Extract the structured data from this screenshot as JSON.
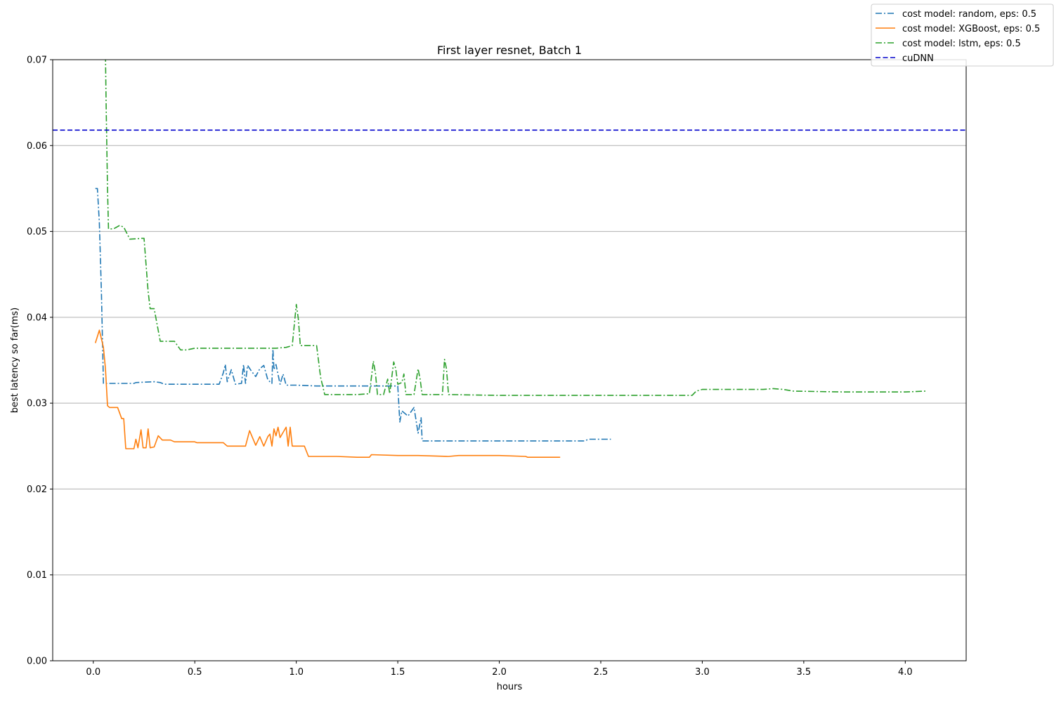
{
  "chart_data": {
    "type": "line",
    "title": "First layer resnet, Batch 1",
    "xlabel": "hours",
    "ylabel": "best latency so far(ms)",
    "xlim": [
      -0.2,
      4.3
    ],
    "ylim": [
      0.0,
      0.07
    ],
    "xticks": [
      0.0,
      0.5,
      1.0,
      1.5,
      2.0,
      2.5,
      3.0,
      3.5,
      4.0
    ],
    "xtick_labels": [
      "0.0",
      "0.5",
      "1.0",
      "1.5",
      "2.0",
      "2.5",
      "3.0",
      "3.5",
      "4.0"
    ],
    "yticks": [
      0.0,
      0.01,
      0.02,
      0.03,
      0.04,
      0.05,
      0.06,
      0.07
    ],
    "ytick_labels": [
      "0.00",
      "0.01",
      "0.02",
      "0.03",
      "0.04",
      "0.05",
      "0.06",
      "0.07"
    ],
    "grid": "horizontal",
    "legend_position": "top-right",
    "series": [
      {
        "name": "cost model: random, eps: 0.5",
        "color": "#1f77b4",
        "style": "dashdot",
        "points": [
          [
            0.01,
            0.055
          ],
          [
            0.02,
            0.055
          ],
          [
            0.03,
            0.051
          ],
          [
            0.04,
            0.043
          ],
          [
            0.05,
            0.0323
          ],
          [
            0.1,
            0.0323
          ],
          [
            0.2,
            0.0323
          ],
          [
            0.21,
            0.0324
          ],
          [
            0.3,
            0.0325
          ],
          [
            0.33,
            0.0324
          ],
          [
            0.35,
            0.0322
          ],
          [
            0.5,
            0.0322
          ],
          [
            0.6,
            0.0322
          ],
          [
            0.62,
            0.0322
          ],
          [
            0.64,
            0.0335
          ],
          [
            0.65,
            0.0345
          ],
          [
            0.66,
            0.0325
          ],
          [
            0.68,
            0.0339
          ],
          [
            0.7,
            0.0322
          ],
          [
            0.73,
            0.0323
          ],
          [
            0.74,
            0.0345
          ],
          [
            0.75,
            0.0323
          ],
          [
            0.76,
            0.0344
          ],
          [
            0.78,
            0.0337
          ],
          [
            0.8,
            0.0331
          ],
          [
            0.82,
            0.034
          ],
          [
            0.84,
            0.0344
          ],
          [
            0.86,
            0.0327
          ],
          [
            0.88,
            0.0323
          ],
          [
            0.885,
            0.0363
          ],
          [
            0.89,
            0.0339
          ],
          [
            0.9,
            0.0345
          ],
          [
            0.92,
            0.0322
          ],
          [
            0.935,
            0.0334
          ],
          [
            0.95,
            0.0321
          ],
          [
            1.0,
            0.0321
          ],
          [
            1.1,
            0.032
          ],
          [
            1.5,
            0.032
          ],
          [
            1.51,
            0.0278
          ],
          [
            1.52,
            0.0291
          ],
          [
            1.55,
            0.0285
          ],
          [
            1.58,
            0.0295
          ],
          [
            1.6,
            0.0265
          ],
          [
            1.615,
            0.0283
          ],
          [
            1.62,
            0.0256
          ],
          [
            2.0,
            0.0256
          ],
          [
            2.42,
            0.0256
          ],
          [
            2.44,
            0.0258
          ],
          [
            2.55,
            0.0258
          ]
        ]
      },
      {
        "name": "cost model: XGBoost, eps: 0.5",
        "color": "#ff7f0e",
        "style": "solid",
        "points": [
          [
            0.01,
            0.037
          ],
          [
            0.03,
            0.0385
          ],
          [
            0.05,
            0.0365
          ],
          [
            0.06,
            0.034
          ],
          [
            0.07,
            0.0297
          ],
          [
            0.08,
            0.0295
          ],
          [
            0.12,
            0.0295
          ],
          [
            0.14,
            0.0282
          ],
          [
            0.15,
            0.0282
          ],
          [
            0.16,
            0.0247
          ],
          [
            0.2,
            0.0247
          ],
          [
            0.21,
            0.0258
          ],
          [
            0.22,
            0.0248
          ],
          [
            0.235,
            0.0269
          ],
          [
            0.245,
            0.0248
          ],
          [
            0.26,
            0.0248
          ],
          [
            0.27,
            0.027
          ],
          [
            0.28,
            0.0248
          ],
          [
            0.3,
            0.0249
          ],
          [
            0.32,
            0.0262
          ],
          [
            0.34,
            0.0257
          ],
          [
            0.38,
            0.0257
          ],
          [
            0.4,
            0.0255
          ],
          [
            0.5,
            0.0255
          ],
          [
            0.51,
            0.0254
          ],
          [
            0.64,
            0.0254
          ],
          [
            0.66,
            0.025
          ],
          [
            0.75,
            0.025
          ],
          [
            0.76,
            0.0259
          ],
          [
            0.77,
            0.0268
          ],
          [
            0.8,
            0.0251
          ],
          [
            0.82,
            0.0261
          ],
          [
            0.84,
            0.025
          ],
          [
            0.86,
            0.0261
          ],
          [
            0.87,
            0.0264
          ],
          [
            0.88,
            0.025
          ],
          [
            0.89,
            0.027
          ],
          [
            0.9,
            0.0262
          ],
          [
            0.91,
            0.0272
          ],
          [
            0.92,
            0.026
          ],
          [
            0.95,
            0.0272
          ],
          [
            0.96,
            0.025
          ],
          [
            0.97,
            0.0272
          ],
          [
            0.98,
            0.025
          ],
          [
            1.04,
            0.025
          ],
          [
            1.06,
            0.0238
          ],
          [
            1.2,
            0.0238
          ],
          [
            1.3,
            0.0237
          ],
          [
            1.36,
            0.0237
          ],
          [
            1.37,
            0.024
          ],
          [
            1.5,
            0.0239
          ],
          [
            1.6,
            0.0239
          ],
          [
            1.75,
            0.0238
          ],
          [
            1.8,
            0.0239
          ],
          [
            2.0,
            0.0239
          ],
          [
            2.13,
            0.0238
          ],
          [
            2.14,
            0.0237
          ],
          [
            2.2,
            0.0237
          ],
          [
            2.3,
            0.0237
          ]
        ]
      },
      {
        "name": "cost model: lstm, eps: 0.5",
        "color": "#2ca02c",
        "style": "dashdot",
        "points": [
          [
            0.06,
            0.0705
          ],
          [
            0.063,
            0.065
          ],
          [
            0.07,
            0.055
          ],
          [
            0.075,
            0.0503
          ],
          [
            0.1,
            0.0503
          ],
          [
            0.13,
            0.0507
          ],
          [
            0.15,
            0.0505
          ],
          [
            0.18,
            0.0491
          ],
          [
            0.24,
            0.0492
          ],
          [
            0.25,
            0.0492
          ],
          [
            0.27,
            0.043
          ],
          [
            0.28,
            0.041
          ],
          [
            0.3,
            0.041
          ],
          [
            0.33,
            0.0372
          ],
          [
            0.4,
            0.0372
          ],
          [
            0.43,
            0.0362
          ],
          [
            0.46,
            0.0362
          ],
          [
            0.5,
            0.0364
          ],
          [
            0.6,
            0.0364
          ],
          [
            0.8,
            0.0364
          ],
          [
            0.9,
            0.0364
          ],
          [
            0.95,
            0.0365
          ],
          [
            0.98,
            0.0367
          ],
          [
            1.0,
            0.0415
          ],
          [
            1.01,
            0.0398
          ],
          [
            1.02,
            0.0367
          ],
          [
            1.1,
            0.0367
          ],
          [
            1.12,
            0.033
          ],
          [
            1.14,
            0.031
          ],
          [
            1.3,
            0.031
          ],
          [
            1.36,
            0.0311
          ],
          [
            1.38,
            0.0349
          ],
          [
            1.39,
            0.0335
          ],
          [
            1.4,
            0.031
          ],
          [
            1.43,
            0.031
          ],
          [
            1.45,
            0.0328
          ],
          [
            1.46,
            0.0311
          ],
          [
            1.48,
            0.0348
          ],
          [
            1.49,
            0.034
          ],
          [
            1.5,
            0.0322
          ],
          [
            1.52,
            0.0324
          ],
          [
            1.53,
            0.0334
          ],
          [
            1.54,
            0.031
          ],
          [
            1.58,
            0.031
          ],
          [
            1.6,
            0.034
          ],
          [
            1.61,
            0.0328
          ],
          [
            1.62,
            0.031
          ],
          [
            1.72,
            0.031
          ],
          [
            1.73,
            0.0351
          ],
          [
            1.74,
            0.034
          ],
          [
            1.75,
            0.031
          ],
          [
            2.0,
            0.0309
          ],
          [
            2.5,
            0.0309
          ],
          [
            2.95,
            0.0309
          ],
          [
            2.97,
            0.0314
          ],
          [
            3.0,
            0.0316
          ],
          [
            3.3,
            0.0316
          ],
          [
            3.35,
            0.0317
          ],
          [
            3.4,
            0.0316
          ],
          [
            3.45,
            0.0314
          ],
          [
            3.7,
            0.0313
          ],
          [
            4.0,
            0.0313
          ],
          [
            4.1,
            0.0314
          ]
        ]
      },
      {
        "name": "cuDNN",
        "color": "#0000cc",
        "style": "dashed",
        "points": [
          [
            -0.2,
            0.0618
          ],
          [
            4.3,
            0.0618
          ]
        ]
      }
    ]
  }
}
